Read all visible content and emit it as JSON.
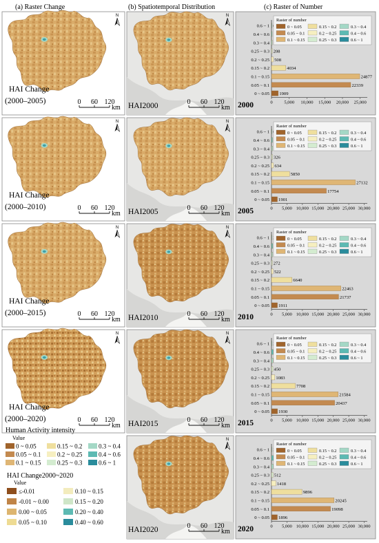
{
  "headers": {
    "a": "(a)   Raster Change",
    "b": "(b)   Spatiotemporal Distribution",
    "c": "(c)   Raster of Number"
  },
  "scale": {
    "t0": "0",
    "t1": "60",
    "t2": "120",
    "unit": "km"
  },
  "north": "N",
  "change_labels": [
    {
      "line1": "HAI Change",
      "line2": "(2000–2005)"
    },
    {
      "line1": "HAI Change",
      "line2": "(2000–2010)"
    },
    {
      "line1": "HAI Change",
      "line2": "(2000–2015)"
    },
    {
      "line1": "HAI Change",
      "line2": "(2000–2020)"
    }
  ],
  "hai_labels": [
    "HAI2000",
    "HAI2005",
    "HAI2010",
    "HAI2015",
    "HAI2020"
  ],
  "chart_legend": {
    "title": "Raster of number",
    "items": [
      {
        "label": "0 ~ 0.05",
        "color": "#a0642c"
      },
      {
        "label": "0.05 ~ 0.1",
        "color": "#c38a50"
      },
      {
        "label": "0.1 ~ 0.15",
        "color": "#dfb675"
      },
      {
        "label": "0.15 ~ 0.2",
        "color": "#efdf9e"
      },
      {
        "label": "0.2 ~ 0.25",
        "color": "#f6efc0"
      },
      {
        "label": "0.25 ~ 0.3",
        "color": "#d4ecd0"
      },
      {
        "label": "0.3 ~ 0.4",
        "color": "#a4d8c6"
      },
      {
        "label": "0.4 ~ 0.6",
        "color": "#5dbab3"
      },
      {
        "label": "0.6 ~ 1",
        "color": "#2a8c9c"
      }
    ]
  },
  "legend_hai": {
    "title": "Human Activity intensity",
    "sub": "Value",
    "items": [
      {
        "label": "0 ~ 0.05",
        "color": "#a0642c"
      },
      {
        "label": "0.15 ~ 0.2",
        "color": "#efdf9e"
      },
      {
        "label": "0.3 ~ 0.4",
        "color": "#a4d8c6"
      },
      {
        "label": "0.05 ~ 0.1",
        "color": "#c38a50"
      },
      {
        "label": "0.2 ~ 0.25",
        "color": "#f6efc0"
      },
      {
        "label": "0.4 ~ 0.6",
        "color": "#5dbab3"
      },
      {
        "label": "0.1 ~ 0.15",
        "color": "#dfb675"
      },
      {
        "label": "0.25 ~ 0.3",
        "color": "#d4ecd0"
      },
      {
        "label": "0.6 ~ 1",
        "color": "#2a8c9c"
      }
    ]
  },
  "legend_change": {
    "title": "HAI Change2000~2020",
    "sub": "Value",
    "items": [
      {
        "label": "≤-0.01",
        "color": "#8e4e1c"
      },
      {
        "label": "0.10 ~ 0.15",
        "color": "#f3ecbd"
      },
      {
        "label": "-0.01 ~ 0.00",
        "color": "#c08447"
      },
      {
        "label": "0.15 ~ 0.20",
        "color": "#cfe6c8"
      },
      {
        "label": "0.00 ~ 0.05",
        "color": "#ddb56f"
      },
      {
        "label": "0.20 ~ 0.40",
        "color": "#5dbab3"
      },
      {
        "label": "0.05 ~ 0.10",
        "color": "#eedb93"
      },
      {
        "label": "0.40 ~ 0.60",
        "color": "#2a8c9c"
      }
    ]
  },
  "chart_data": [
    {
      "type": "bar",
      "year": "2000",
      "categories": [
        "0.6 ~ 1",
        "0.4 ~ 0.6",
        "0.3 ~ 0.4",
        "0.25 ~ 0.3",
        "0.2 ~ 0.25",
        "0.15 ~ 0.2",
        "0.1 ~ 0.15",
        "0.05 ~ 0.1",
        "0 ~ 0.05"
      ],
      "values": [
        0,
        189,
        219,
        208,
        508,
        4034,
        24877,
        22339,
        1909
      ],
      "xticks": [
        0,
        5000,
        10000,
        15000,
        20000,
        25000
      ],
      "xticklabels": [
        "0",
        "5,000",
        "10,000",
        "15,000",
        "20,000",
        "25,000"
      ],
      "xlim": [
        0,
        27000
      ]
    },
    {
      "type": "bar",
      "year": "2005",
      "categories": [
        "0.6 ~ 1",
        "0.4 ~ 0.6",
        "0.3 ~ 0.4",
        "0.25 ~ 0.3",
        "0.2 ~ 0.25",
        "0.15 ~ 0.2",
        "0.1 ~ 0.15",
        "0.05 ~ 0.1",
        "0 ~ 0.05"
      ],
      "values": [
        0,
        329,
        357,
        326,
        634,
        5850,
        27132,
        17754,
        1901
      ],
      "xticks": [
        0,
        5000,
        10000,
        15000,
        20000,
        25000,
        30000
      ],
      "xticklabels": [
        "0",
        "5,000",
        "10,000",
        "15,000",
        "20,000",
        "25,000",
        "30,000"
      ],
      "xlim": [
        0,
        31000
      ]
    },
    {
      "type": "bar",
      "year": "2010",
      "categories": [
        "0.6 ~ 1",
        "0.4 ~ 0.6",
        "0.3 ~ 0.4",
        "0.25 ~ 0.3",
        "0.2 ~ 0.25",
        "0.15 ~ 0.2",
        "0.1 ~ 0.15",
        "0.05 ~ 0.1",
        "0 ~ 0.05"
      ],
      "values": [
        2,
        380,
        356,
        272,
        522,
        6640,
        22463,
        21737,
        1911
      ],
      "xticks": [
        0,
        5000,
        10000,
        15000,
        20000,
        25000,
        30000
      ],
      "xticklabels": [
        "0",
        "5,000",
        "10,000",
        "15,000",
        "20,000",
        "25,000",
        "30,000"
      ],
      "xlim": [
        0,
        31000
      ]
    },
    {
      "type": "bar",
      "year": "2015",
      "categories": [
        "0.6 ~ 1",
        "0.4 ~ 0.6",
        "0.3 ~ 0.4",
        "0.25 ~ 0.3",
        "0.2 ~ 0.25",
        "0.15 ~ 0.2",
        "0.1 ~ 0.15",
        "0.05 ~ 0.1",
        "0 ~ 0.05"
      ],
      "values": [
        27,
        554,
        510,
        450,
        1083,
        7708,
        21584,
        20437,
        1930
      ],
      "xticks": [
        0,
        5000,
        10000,
        15000,
        20000,
        25000,
        30000
      ],
      "xticklabels": [
        "0",
        "5,000",
        "10,000",
        "15,000",
        "20,000",
        "25,000",
        "30,000"
      ],
      "xlim": [
        0,
        31000
      ]
    },
    {
      "type": "bar",
      "year": "2020",
      "categories": [
        "0.6 ~ 1",
        "0.4 ~ 0.6",
        "0.3 ~ 0.4",
        "0.25 ~ 0.3",
        "0.2 ~ 0.25",
        "0.15 ~ 0.2",
        "0.1 ~ 0.15",
        "0.05 ~ 0.1",
        "0 ~ 0.05"
      ],
      "values": [
        35,
        625,
        558,
        512,
        1418,
        9896,
        20245,
        19098,
        1896
      ],
      "xticks": [
        0,
        5000,
        10000,
        15000,
        20000,
        25000,
        30000
      ],
      "xticklabels": [
        "0",
        "5,000",
        "10,000",
        "15,000",
        "20,000",
        "25,000",
        "30,000"
      ],
      "xlim": [
        0,
        31000
      ]
    }
  ]
}
